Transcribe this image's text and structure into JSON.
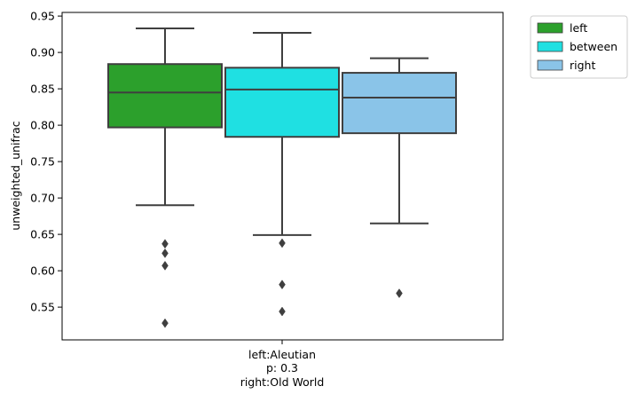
{
  "chart_data": {
    "type": "box",
    "ylabel": "unweighted_unifrac",
    "ylim": [
      0.505,
      0.955
    ],
    "yticks": [
      "0.55",
      "0.60",
      "0.65",
      "0.70",
      "0.75",
      "0.80",
      "0.85",
      "0.90",
      "0.95"
    ],
    "categories": [
      "left:Aleutian\np: 0.3\nright:Old World"
    ],
    "category_lines": [
      "left:Aleutian",
      "p: 0.3",
      "right:Old World"
    ],
    "legend_position": "outside-top-right",
    "series": [
      {
        "name": "left",
        "color": "#2ca02c",
        "whisker_low": 0.69,
        "q1": 0.797,
        "median": 0.845,
        "q3": 0.884,
        "whisker_high": 0.933,
        "outliers": [
          0.637,
          0.624,
          0.607,
          0.528
        ]
      },
      {
        "name": "between",
        "color": "#1fe0e2",
        "whisker_low": 0.649,
        "q1": 0.784,
        "median": 0.849,
        "q3": 0.879,
        "whisker_high": 0.927,
        "outliers": [
          0.638,
          0.581,
          0.544
        ]
      },
      {
        "name": "right",
        "color": "#8ac4e8",
        "whisker_low": 0.665,
        "q1": 0.789,
        "median": 0.838,
        "q3": 0.872,
        "whisker_high": 0.892,
        "outliers": [
          0.569
        ]
      }
    ]
  }
}
